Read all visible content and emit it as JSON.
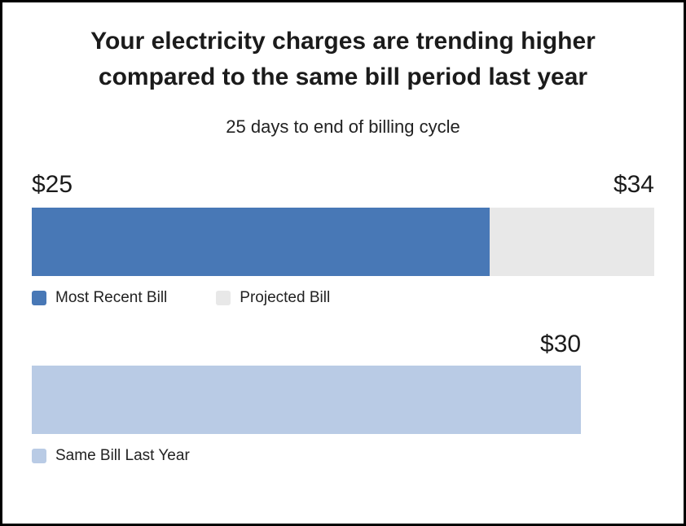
{
  "chart_data": {
    "type": "bar",
    "title": "Your electricity charges are trending higher compared to the same bill period last year",
    "subtitle": "25 days to end of billing cycle",
    "xlim": [
      0,
      34
    ],
    "currency": "$",
    "rows": [
      {
        "name": "current-bill-period",
        "segments": [
          {
            "name": "Most Recent Bill",
            "value": 25,
            "label": "$25"
          },
          {
            "name": "Projected Bill",
            "value": 34,
            "label": "$34"
          }
        ]
      },
      {
        "name": "same-bill-last-year",
        "segments": [
          {
            "name": "Same Bill Last Year",
            "value": 30,
            "label": "$30"
          }
        ]
      }
    ],
    "legend": [
      {
        "label": "Most Recent Bill",
        "color": "#4878b6"
      },
      {
        "label": "Projected Bill",
        "color": "#e8e8e8"
      },
      {
        "label": "Same Bill Last Year",
        "color": "#b9cbe5"
      }
    ]
  }
}
